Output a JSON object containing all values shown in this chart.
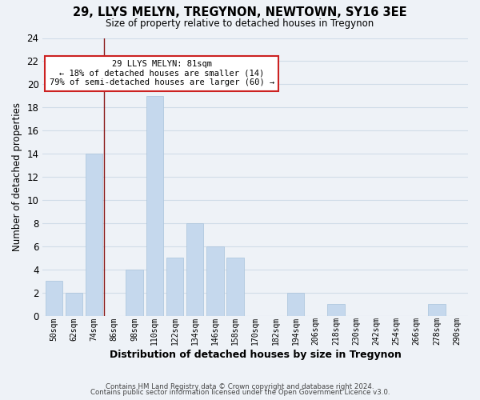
{
  "title": "29, LLYS MELYN, TREGYNON, NEWTOWN, SY16 3EE",
  "subtitle": "Size of property relative to detached houses in Tregynon",
  "xlabel": "Distribution of detached houses by size in Tregynon",
  "ylabel": "Number of detached properties",
  "bin_labels": [
    "50sqm",
    "62sqm",
    "74sqm",
    "86sqm",
    "98sqm",
    "110sqm",
    "122sqm",
    "134sqm",
    "146sqm",
    "158sqm",
    "170sqm",
    "182sqm",
    "194sqm",
    "206sqm",
    "218sqm",
    "230sqm",
    "242sqm",
    "254sqm",
    "266sqm",
    "278sqm",
    "290sqm"
  ],
  "bar_values": [
    3,
    2,
    14,
    0,
    4,
    19,
    5,
    8,
    6,
    5,
    0,
    0,
    2,
    0,
    1,
    0,
    0,
    0,
    0,
    1,
    0
  ],
  "bar_color": "#c5d8ed",
  "bar_edge_color": "#b0c8de",
  "grid_color": "#d0dce8",
  "vline_x_index": 2.5,
  "vline_color": "#8b1a1a",
  "annotation_line1": "29 LLYS MELYN: 81sqm",
  "annotation_line2": "← 18% of detached houses are smaller (14)",
  "annotation_line3": "79% of semi-detached houses are larger (60) →",
  "annotation_box_color": "#ffffff",
  "annotation_box_edge_color": "#cc2222",
  "ylim": [
    0,
    24
  ],
  "yticks": [
    0,
    2,
    4,
    6,
    8,
    10,
    12,
    14,
    16,
    18,
    20,
    22,
    24
  ],
  "footer_line1": "Contains HM Land Registry data © Crown copyright and database right 2024.",
  "footer_line2": "Contains public sector information licensed under the Open Government Licence v3.0.",
  "background_color": "#eef2f7",
  "plot_bg_color": "#eef2f7"
}
